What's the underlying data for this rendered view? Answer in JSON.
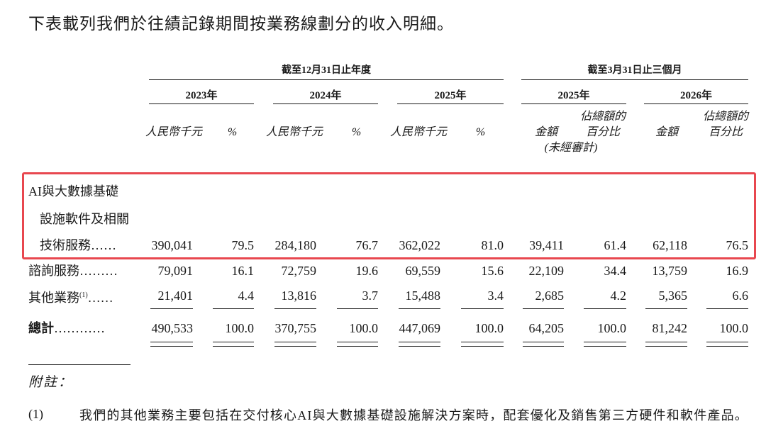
{
  "intro": "下表載列我們於往績記錄期間按業務線劃分的收入明細。",
  "header": {
    "group_annual": "截至12月31日止年度",
    "group_quarter": "截至3月31日止三個月",
    "years": [
      "2023年",
      "2024年",
      "2025年",
      "2025年",
      "2026年"
    ],
    "unit_rmb": "人民幣千元",
    "unit_pct": "%",
    "unit_amount": "金額",
    "unit_pct_total_line1": "佔總額的",
    "unit_pct_total_line2": "百分比",
    "unaudited": "(未經審計)"
  },
  "rows": [
    {
      "label_lines": [
        "AI與大數據基礎",
        "設施軟件及相關",
        "技術服務"
      ],
      "leader": "……",
      "values": [
        "390,041",
        "79.5",
        "284,180",
        "76.7",
        "362,022",
        "81.0",
        "39,411",
        "61.4",
        "62,118",
        "76.5"
      ]
    },
    {
      "label_lines": [
        "諮詢服務"
      ],
      "leader": "………",
      "values": [
        "79,091",
        "16.1",
        "72,759",
        "19.6",
        "69,559",
        "15.6",
        "22,109",
        "34.4",
        "13,759",
        "16.9"
      ]
    },
    {
      "label_lines": [
        "其他業務"
      ],
      "sup": "(1)",
      "leader": "……",
      "values": [
        "21,401",
        "4.4",
        "13,816",
        "3.7",
        "15,488",
        "3.4",
        "2,685",
        "4.2",
        "5,365",
        "6.6"
      ]
    },
    {
      "label_lines": [
        "總計"
      ],
      "leader": "…………",
      "values": [
        "490,533",
        "100.0",
        "370,755",
        "100.0",
        "447,069",
        "100.0",
        "64,205",
        "100.0",
        "81,242",
        "100.0"
      ]
    }
  ],
  "notes": {
    "title": "附註：",
    "items": [
      {
        "num": "(1)",
        "text": "我們的其他業務主要包括在交付核心AI與大數據基礎設施解決方案時，配套優化及銷售第三方硬件和軟件產品。"
      }
    ]
  }
}
